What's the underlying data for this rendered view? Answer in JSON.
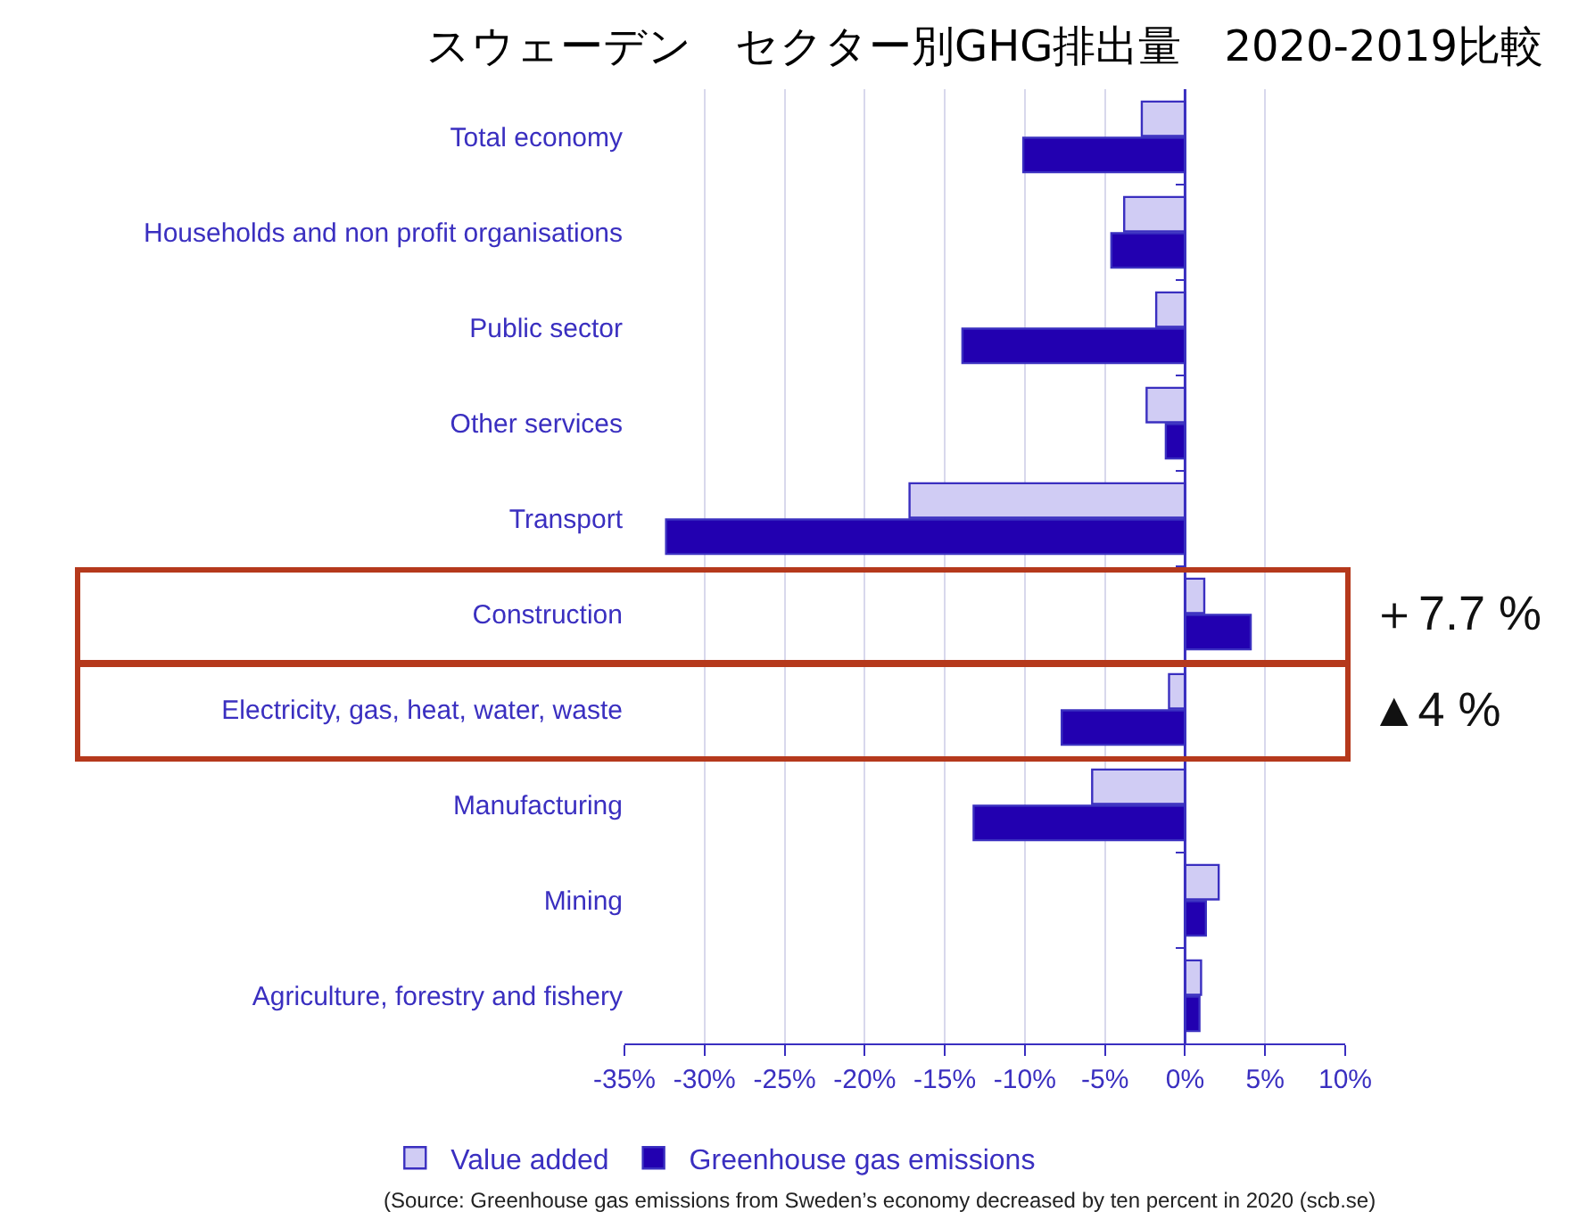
{
  "chart_data": {
    "type": "bar",
    "orientation": "horizontal",
    "title": "スウェーデン　セクター別GHG排出量　2020-2019比較",
    "categories": [
      "Total economy",
      "Households and non profit organisations",
      "Public sector",
      "Other services",
      "Transport",
      "Construction",
      "Electricity, gas, heat, water, waste",
      "Manufacturing",
      "Mining",
      "Agriculture, forestry and fishery"
    ],
    "series": [
      {
        "name": "Value added",
        "color": "#d0ccf4",
        "values": [
          -2.7,
          -3.8,
          -1.8,
          -2.4,
          -17.2,
          1.2,
          -1.0,
          -5.8,
          2.1,
          1.0
        ]
      },
      {
        "name": "Greenhouse gas emissions",
        "color": "#2200b0",
        "values": [
          -10.1,
          -4.6,
          -13.9,
          -1.2,
          -32.4,
          4.1,
          -7.7,
          -13.2,
          1.3,
          0.9
        ]
      }
    ],
    "xlim": [
      -35,
      10
    ],
    "xticks": [
      {
        "value": -35,
        "label": "-35%"
      },
      {
        "value": -30,
        "label": "-30%"
      },
      {
        "value": -25,
        "label": "-25%"
      },
      {
        "value": -20,
        "label": "-20%"
      },
      {
        "value": -15,
        "label": "-15%"
      },
      {
        "value": -10,
        "label": "-10%"
      },
      {
        "value": -5,
        "label": "-5%"
      },
      {
        "value": 0,
        "label": "0%"
      },
      {
        "value": 5,
        "label": "5%"
      },
      {
        "value": 10,
        "label": "10%"
      }
    ],
    "grid": "x",
    "legend": "bottom left",
    "ref_lines": [
      {
        "axis": "x",
        "value": 0,
        "color": "#3a2fc0"
      }
    ],
    "annotations": [
      "＋7.7 %",
      "▲4 %",
      "(Source: Greenhouse gas emissions from Sweden’s economy decreased by ten percent in 2020 (scb.se)"
    ]
  }
}
